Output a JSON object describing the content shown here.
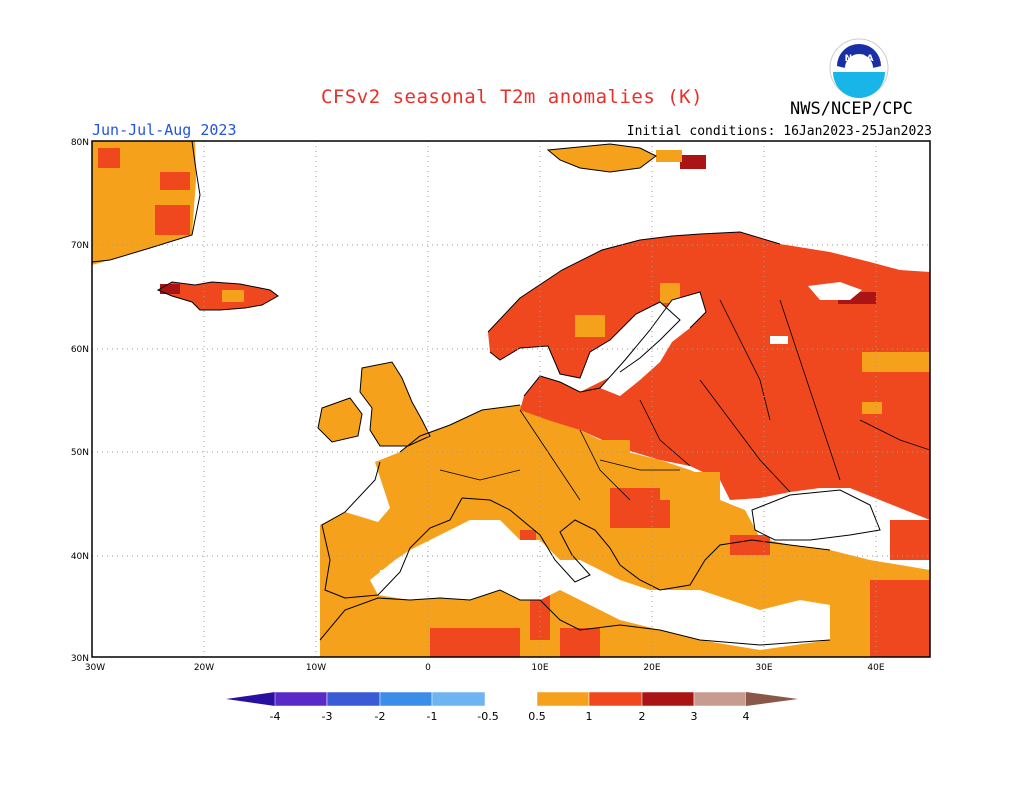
{
  "header": {
    "title": "CFSv2 seasonal T2m anomalies (K)",
    "season": "Jun-Jul-Aug 2023",
    "initial_conditions": "Initial conditions: 16Jan2023-25Jan2023",
    "agency": "NWS/NCEP/CPC",
    "logo_text": "NOAA"
  },
  "map": {
    "region": "Europe",
    "lon_range": [
      -30,
      45
    ],
    "lat_range": [
      30,
      80
    ],
    "lat_labels": [
      "30N",
      "40N",
      "50N",
      "60N",
      "70N",
      "80N"
    ],
    "lon_labels": [
      "30W",
      "20W",
      "10W",
      "0",
      "10E",
      "20E",
      "30E",
      "40E"
    ],
    "gridlines": "dotted",
    "colors": {
      "0.5-1": "#f5a11c",
      "1-2": "#f0481e",
      "2-3": "#aa1414",
      "3-4": "#c89b90"
    }
  },
  "colorbar": {
    "labels": [
      "-4",
      "-3",
      "-2",
      "-1",
      "-0.5",
      "0.5",
      "1",
      "2",
      "3",
      "4"
    ],
    "negative_colors": [
      "#5a2ac8",
      "#3a5ad6",
      "#3c8cea",
      "#6fb4f2",
      "#a6d2f8"
    ],
    "positive_colors": [
      "#f5a11c",
      "#f0481e",
      "#aa1414",
      "#c89b90"
    ],
    "low_end_color": "#2a10a0",
    "high_end_color": "#8a5848"
  }
}
